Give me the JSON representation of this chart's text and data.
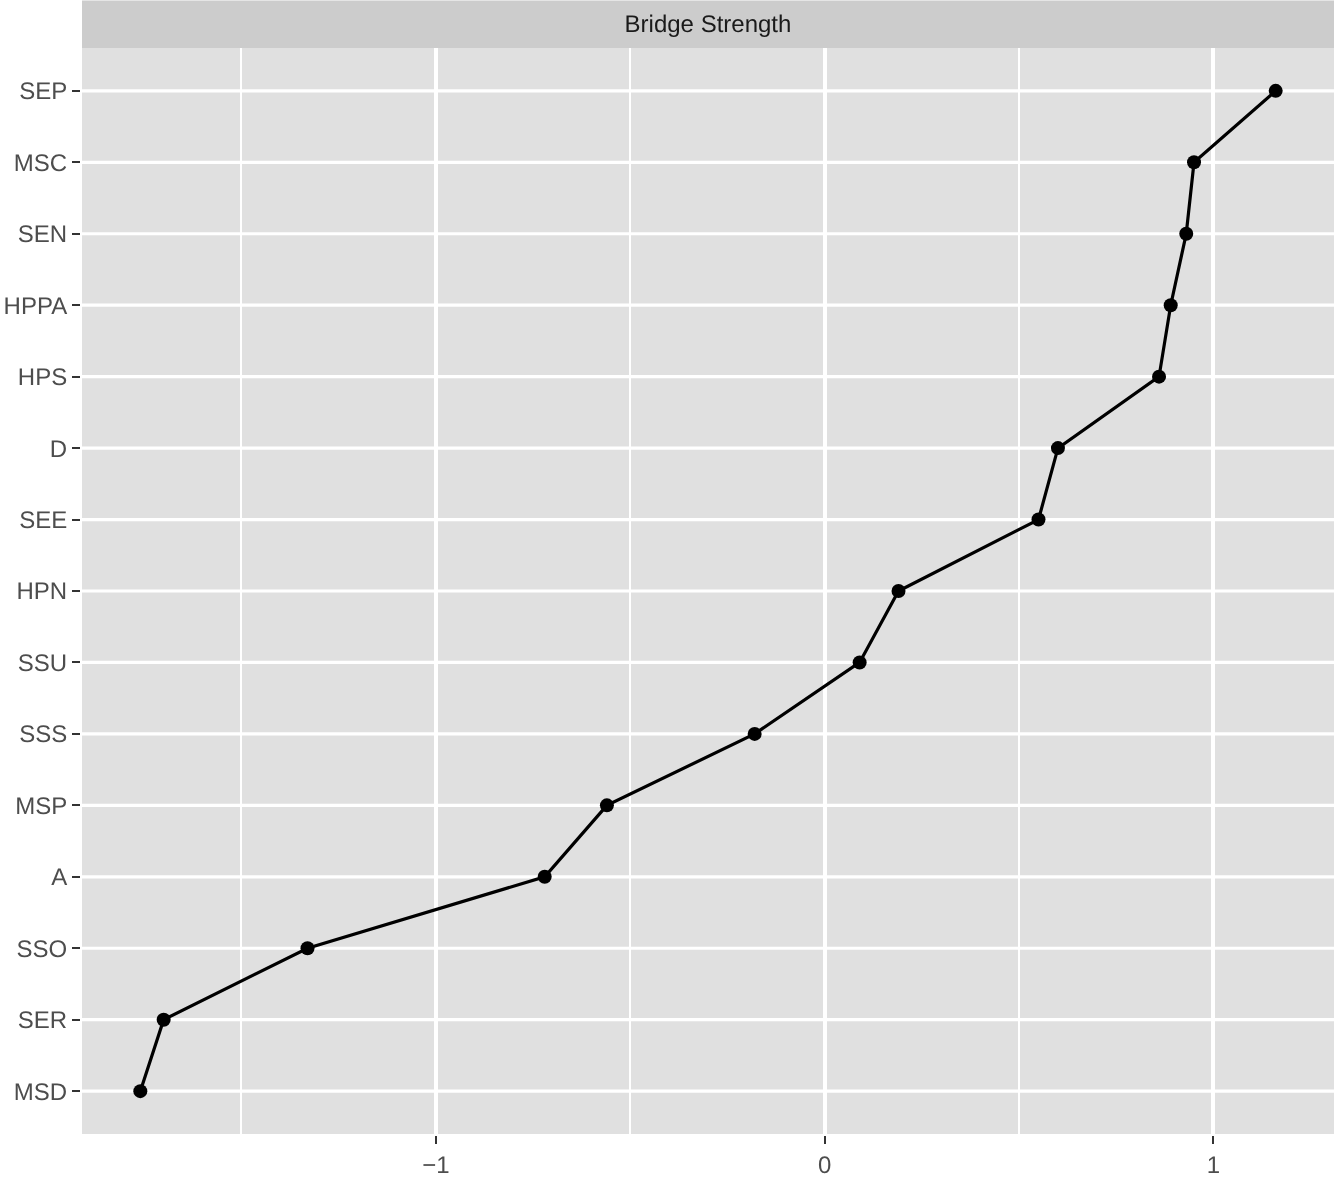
{
  "chart_data": {
    "type": "line",
    "orientation": "horizontal",
    "title": "Bridge Strength",
    "categories": [
      "SEP",
      "MSC",
      "SEN",
      "HPPA",
      "HPS",
      "D",
      "SEE",
      "HPN",
      "SSU",
      "SSS",
      "MSP",
      "A",
      "SSO",
      "SER",
      "MSD"
    ],
    "values": [
      1.16,
      0.95,
      0.93,
      0.89,
      0.86,
      0.6,
      0.55,
      0.19,
      0.09,
      -0.18,
      -0.56,
      -0.72,
      -1.33,
      -1.7,
      -1.76
    ],
    "color": "#000000",
    "xlim": [
      -1.91,
      1.31
    ],
    "xticks": [
      -1,
      0,
      1
    ],
    "grid": true,
    "marker": "circle",
    "line_style": "solid"
  }
}
